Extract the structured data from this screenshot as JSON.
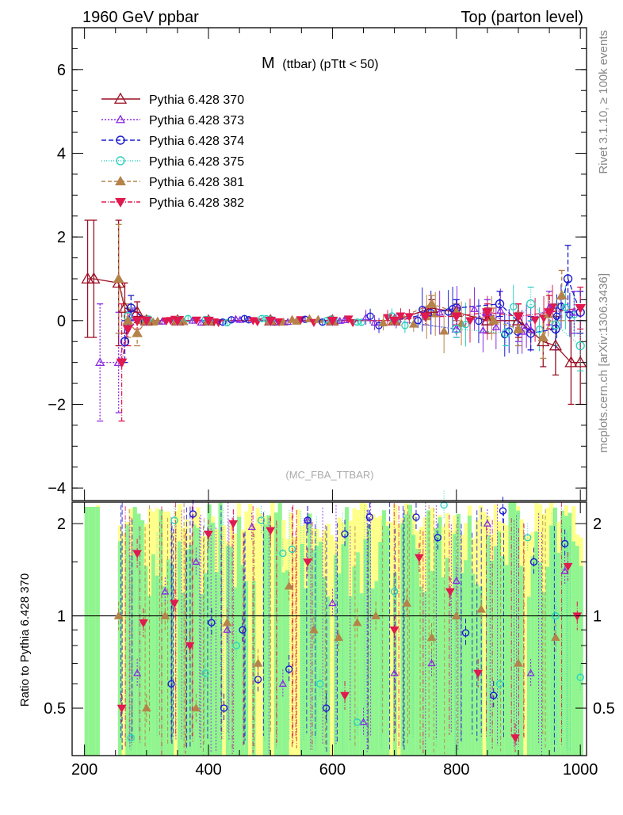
{
  "header": {
    "left": "1960 GeV ppbar",
    "right": "Top (parton level)"
  },
  "side_labels": {
    "rivet": "Rivet 3.1.10, ≥ 100k events",
    "mcplots": "mcplots.cern.ch [arXiv:1306.3436]"
  },
  "plot_title": {
    "main": "M",
    "sub": "(ttbar) (pTtt < 50)"
  },
  "watermark": "(MC_FBA_TTBAR)",
  "ratio_ylabel": "Ratio to Pythia 6.428 370",
  "colors": {
    "s370": "#9b0f23",
    "s373": "#8a2be2",
    "s374": "#1c1ccf",
    "s375": "#2fd1c0",
    "s381": "#b5834a",
    "s382": "#e0194f",
    "band_yellow": "#ffff8c",
    "band_green": "#90f590"
  },
  "chart_data": [
    {
      "type": "line",
      "panel": "main",
      "xlim": [
        180,
        1010
      ],
      "ylim": [
        -4.3,
        7
      ],
      "yticks": [
        -4,
        -2,
        0,
        2,
        4,
        6
      ],
      "ytick_labels": [
        "−4",
        "−2",
        "0",
        "2",
        "4",
        "6"
      ],
      "legend_position": "top-left",
      "series": [
        {
          "name": "Pythia 6.428 370",
          "key": "s370",
          "marker": "triangle-open",
          "dash": "",
          "x": [
            205,
            215,
            255,
            265,
            285,
            300,
            350,
            400,
            500,
            600,
            700,
            760,
            800,
            850,
            900,
            940,
            960,
            985,
            1000
          ],
          "y": [
            1.0,
            1.0,
            0.9,
            0.3,
            0.2,
            0.0,
            0.0,
            0.0,
            0.0,
            0.0,
            0.0,
            0.3,
            0.2,
            0.0,
            0.0,
            -0.5,
            -0.6,
            -1.0,
            -1.0
          ],
          "err": [
            1.4,
            1.4,
            1.5,
            0.6,
            0.25,
            0.1,
            0.05,
            0.05,
            0.05,
            0.05,
            0.08,
            0.2,
            0.2,
            0.3,
            0.4,
            0.6,
            0.7,
            1.0,
            1.0
          ]
        },
        {
          "name": "Pythia 6.428 373",
          "key": "s373",
          "marker": "triangle-open-small",
          "dash": "2,2",
          "x": [
            225,
            255,
            275,
            300,
            350,
            400,
            500,
            600,
            700,
            800,
            850,
            900,
            950,
            990
          ],
          "y": [
            -1.0,
            -1.0,
            0.1,
            0.0,
            0.0,
            0.0,
            0.0,
            0.0,
            0.0,
            -0.2,
            0.2,
            -0.2,
            0.3,
            0.2
          ],
          "err": [
            1.4,
            1.2,
            0.2,
            0.1,
            0.05,
            0.05,
            0.05,
            0.05,
            0.08,
            0.2,
            0.3,
            0.3,
            0.4,
            0.5
          ]
        },
        {
          "name": "Pythia 6.428 374",
          "key": "s374",
          "marker": "circle-open",
          "dash": "6,3",
          "x": [
            265,
            275,
            300,
            350,
            400,
            500,
            600,
            700,
            800,
            870,
            920,
            960,
            980,
            1000
          ],
          "y": [
            -0.5,
            0.3,
            0.0,
            0.0,
            0.0,
            0.0,
            0.0,
            0.0,
            0.3,
            0.4,
            -0.3,
            -0.2,
            1.0,
            0.2
          ],
          "err": [
            0.5,
            0.3,
            0.1,
            0.05,
            0.05,
            0.05,
            0.05,
            0.08,
            0.2,
            0.3,
            0.4,
            0.5,
            0.8,
            0.5
          ]
        },
        {
          "name": "Pythia 6.428 375",
          "key": "s375",
          "marker": "circle-open-cyan",
          "dash": "1,2",
          "x": [
            270,
            300,
            350,
            400,
            500,
            600,
            700,
            800,
            880,
            920,
            960,
            1000
          ],
          "y": [
            0.1,
            0.0,
            0.0,
            0.0,
            0.0,
            0.0,
            0.0,
            -0.2,
            -0.3,
            0.4,
            -0.1,
            -0.6
          ],
          "err": [
            0.2,
            0.1,
            0.05,
            0.05,
            0.05,
            0.05,
            0.08,
            0.2,
            0.3,
            0.4,
            0.5,
            0.6
          ]
        },
        {
          "name": "Pythia 6.428 381",
          "key": "s381",
          "marker": "triangle-filled",
          "dash": "5,3",
          "x": [
            255,
            270,
            285,
            300,
            350,
            400,
            500,
            600,
            700,
            760,
            800,
            860,
            900,
            940,
            970
          ],
          "y": [
            1.0,
            0.0,
            -0.3,
            0.0,
            0.0,
            0.0,
            0.0,
            0.0,
            0.0,
            0.4,
            0.2,
            0.0,
            -0.2,
            -0.4,
            0.6
          ],
          "err": [
            1.3,
            0.4,
            0.3,
            0.1,
            0.05,
            0.05,
            0.05,
            0.05,
            0.08,
            0.2,
            0.2,
            0.3,
            0.4,
            0.5,
            0.6
          ]
        },
        {
          "name": "Pythia 6.428 382",
          "key": "s382",
          "marker": "triangle-down-filled",
          "dash": "6,2,1,2",
          "x": [
            260,
            270,
            285,
            300,
            350,
            400,
            500,
            600,
            700,
            750,
            800,
            850,
            900,
            950,
            1000
          ],
          "y": [
            -1.0,
            -0.2,
            0.0,
            0.0,
            0.0,
            0.0,
            0.0,
            0.0,
            0.0,
            0.1,
            0.1,
            0.2,
            0.1,
            0.2,
            0.3
          ],
          "err": [
            1.4,
            0.4,
            0.2,
            0.1,
            0.05,
            0.05,
            0.05,
            0.05,
            0.08,
            0.2,
            0.2,
            0.2,
            0.3,
            0.4,
            0.5
          ]
        }
      ]
    },
    {
      "type": "line",
      "panel": "ratio",
      "xlim": [
        180,
        1010
      ],
      "ylim": [
        0.35,
        2.35
      ],
      "yticks": [
        0.5,
        1,
        2
      ],
      "ytick_labels": [
        "0.5",
        "1",
        "2"
      ],
      "xticks": [
        200,
        400,
        600,
        800,
        1000
      ],
      "xtick_labels": [
        "200",
        "400",
        "600",
        "800",
        "1000"
      ],
      "reference_line": 1,
      "series": [
        {
          "key": "s373",
          "x": [
            285,
            330,
            380,
            430,
            470,
            520,
            560,
            600,
            650,
            700,
            760,
            800,
            850,
            920,
            975
          ],
          "y": [
            0.65,
            1.2,
            1.5,
            0.9,
            1.95,
            0.6,
            2.05,
            1.1,
            0.45,
            0.65,
            0.7,
            1.3,
            2.0,
            0.65,
            1.4
          ]
        },
        {
          "key": "s374",
          "x": [
            340,
            375,
            405,
            425,
            455,
            480,
            530,
            560,
            590,
            620,
            660,
            735,
            770,
            815,
            860,
            875,
            925,
            975
          ],
          "y": [
            0.6,
            2.15,
            0.95,
            0.5,
            0.9,
            0.62,
            0.67,
            2.05,
            0.5,
            1.85,
            2.1,
            2.1,
            1.8,
            0.88,
            0.55,
            2.2,
            1.5,
            1.72
          ]
        },
        {
          "key": "s375",
          "x": [
            275,
            345,
            395,
            445,
            485,
            520,
            535,
            580,
            640,
            700,
            780,
            870,
            915,
            960,
            1000
          ],
          "y": [
            0.4,
            2.05,
            0.65,
            0.8,
            2.05,
            1.6,
            1.65,
            0.6,
            0.45,
            1.2,
            2.3,
            0.6,
            1.8,
            1.0,
            0.63
          ]
        },
        {
          "key": "s381",
          "x": [
            255,
            300,
            330,
            380,
            430,
            480,
            530,
            570,
            610,
            640,
            670,
            720,
            760,
            800,
            840,
            900,
            960
          ],
          "y": [
            1.0,
            0.5,
            1.0,
            0.5,
            0.95,
            0.7,
            1.25,
            0.9,
            0.85,
            0.95,
            1.0,
            1.1,
            0.85,
            1.0,
            1.05,
            0.7,
            0.85
          ]
        },
        {
          "key": "s382",
          "x": [
            260,
            285,
            295,
            345,
            370,
            400,
            440,
            500,
            560,
            620,
            700,
            740,
            790,
            835,
            895,
            980,
            995
          ],
          "y": [
            0.5,
            1.6,
            0.95,
            1.1,
            0.8,
            1.85,
            2.0,
            1.9,
            1.5,
            0.55,
            0.9,
            1.55,
            1.2,
            0.65,
            0.4,
            1.45,
            1.0
          ]
        }
      ]
    }
  ]
}
